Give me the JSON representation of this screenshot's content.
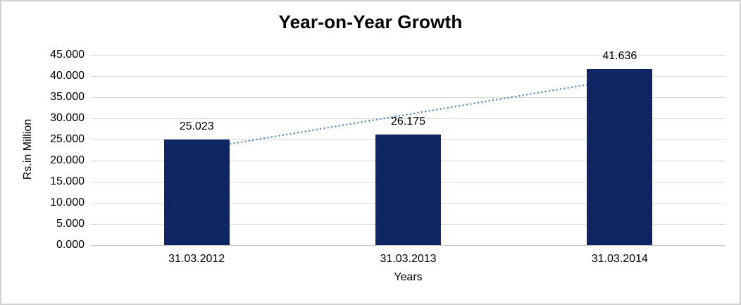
{
  "chart_data": {
    "type": "bar",
    "title": "Year-on-Year Growth",
    "ylabel": "Rs.in Million",
    "xlabel": "Years",
    "categories": [
      "31.03.2012",
      "31.03.2013",
      "31.03.2014"
    ],
    "values": [
      25.023,
      26.175,
      41.636
    ],
    "data_labels": [
      "25.023",
      "26.175",
      "41.636"
    ],
    "y_ticks": [
      "0.000",
      "5.000",
      "10.000",
      "15.000",
      "20.000",
      "25.000",
      "30.000",
      "35.000",
      "40.000",
      "45.000"
    ],
    "ylim": [
      0,
      45
    ],
    "y_tick_step": 5,
    "grid": "horizontal",
    "legend": "none",
    "trendline": {
      "type": "linear",
      "style": "dotted",
      "color": "#4E86C8"
    },
    "colors": {
      "bar": "#0E2663",
      "gridline": "#D9D9D9",
      "axis_line": "#C6C6C6",
      "text": "#000000",
      "frame_border": "#D0D0D0",
      "background": "#FFFFFF"
    }
  }
}
